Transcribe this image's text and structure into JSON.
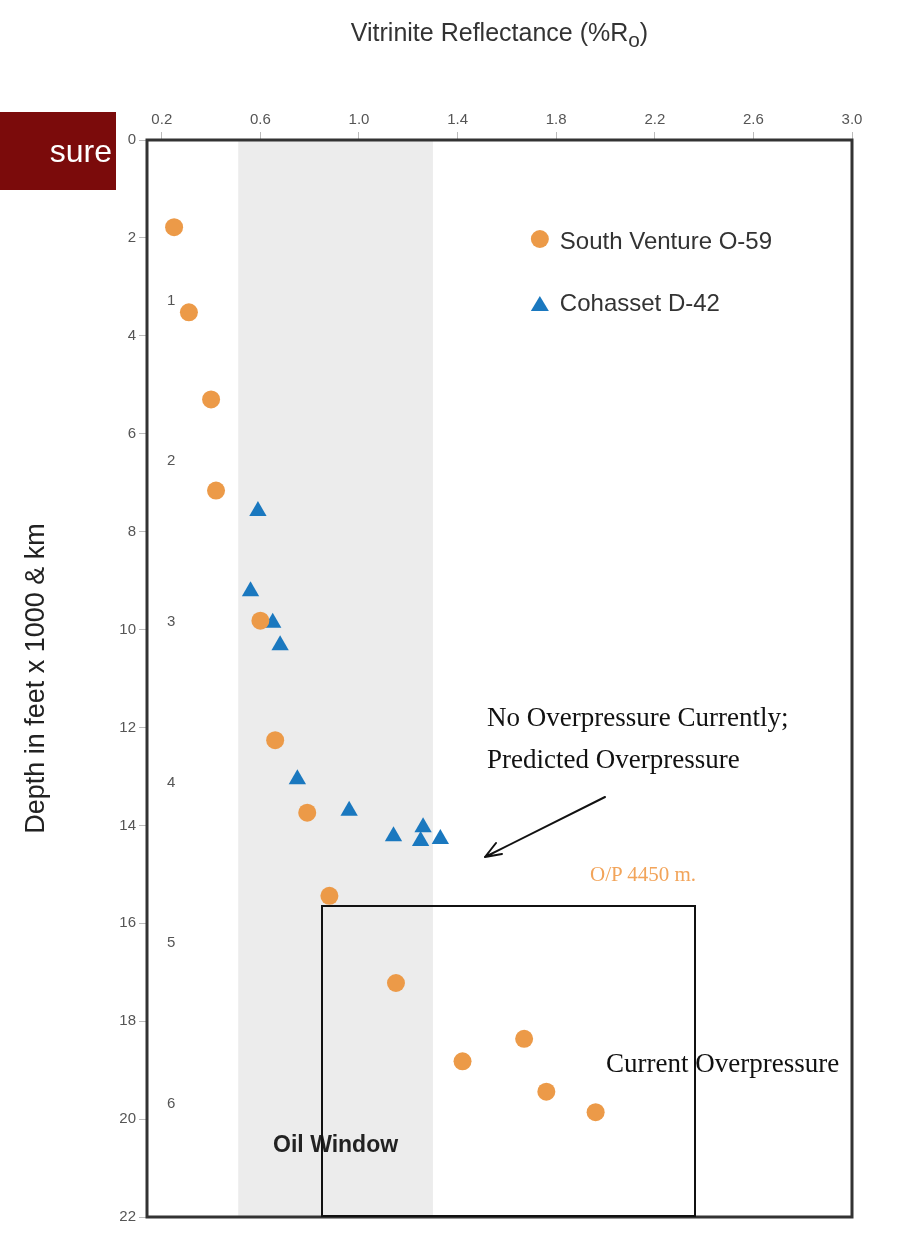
{
  "chart_data": {
    "type": "scatter",
    "xlabel": "Vitrinite Reflectance (%R$_{o}$)",
    "ylabel": "Depth in feet x 1000 & km",
    "xlim": [
      0.14,
      3.0
    ],
    "xticks": [
      0.2,
      0.6,
      {
        "value": 1.0,
        "label": "1.0"
      },
      1.4,
      1.8,
      2.2,
      2.6,
      {
        "value": 3.0,
        "label": "3.0"
      }
    ],
    "ylim": [
      22,
      0
    ],
    "yticks": [
      0,
      2,
      4,
      6,
      8,
      10,
      12,
      14,
      16,
      18,
      20,
      22
    ],
    "y2lim": [
      6.706,
      0
    ],
    "y2ticks": [
      1,
      2,
      3,
      4,
      5,
      6
    ],
    "grid": false,
    "legend": "top right",
    "series": [
      {
        "name": "South Venture O-59",
        "color": "#ec9a48",
        "marker": "circle",
        "x": [
          0.25,
          0.31,
          0.4,
          0.42,
          0.6,
          0.66,
          0.79,
          0.88,
          1.15,
          1.42,
          1.67,
          1.76,
          1.96
        ],
        "values": [
          1.78,
          3.52,
          5.3,
          7.16,
          9.82,
          12.26,
          13.74,
          15.44,
          17.22,
          18.82,
          18.36,
          19.44,
          19.86
        ]
      },
      {
        "name": "Cohasset D-42",
        "color": "#1a78bf",
        "marker": "triangle",
        "x": [
          0.59,
          0.56,
          0.65,
          0.68,
          0.75,
          0.96,
          1.14,
          1.26,
          1.25,
          1.33
        ],
        "values": [
          7.58,
          9.22,
          9.86,
          10.32,
          13.06,
          13.7,
          14.22,
          14.04,
          14.32,
          14.28
        ]
      }
    ],
    "bands": [
      {
        "axis": "x",
        "from": 0.51,
        "to": 1.3,
        "label": "Oil Window",
        "color": "#ececec"
      }
    ],
    "annotations": [
      "sure",
      "No Overpressure Currently;\nPredicted Overpressure",
      "O/P 4450 m.",
      "Current Overpressure"
    ]
  }
}
